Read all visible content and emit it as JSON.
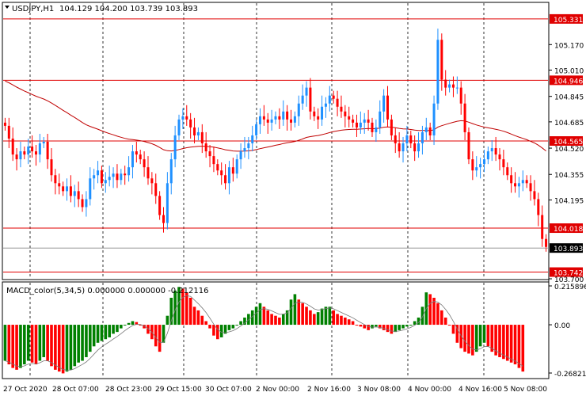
{
  "symbol_header": {
    "symbol": "USDJPY,H1",
    "ohlc": "104.129 104.200 103.739 103.893"
  },
  "macd_header": "MACD_color(5,34,5) 0.000000 0.000000 -0.212116",
  "colors": {
    "bull": "#1e90ff",
    "bear": "#ff0000",
    "ma": "#c00000",
    "hline": "#e00000",
    "macd_pos_up": "#008000",
    "macd_neg_down": "#ff0000",
    "grid": "#000000",
    "price_badge_bg": "#000000"
  },
  "price_axis": {
    "ticks": [
      "105.331",
      "105.170",
      "105.010",
      "104.946",
      "104.845",
      "104.685",
      "104.565",
      "104.520",
      "104.355",
      "104.195",
      "104.018",
      "103.893",
      "103.742",
      "103.700"
    ],
    "hline_labels": [
      "105.331",
      "104.946",
      "104.565",
      "104.018",
      "103.742"
    ],
    "current_price": "103.893"
  },
  "macd_axis": {
    "ticks": [
      "0.215896",
      "0.00",
      "-0.268211"
    ]
  },
  "time_axis": {
    "labels": [
      "27 Oct 2020",
      "28 Oct 07:00",
      "28 Oct 23:00",
      "29 Oct 15:00",
      "30 Oct 07:00",
      "2 Nov 00:00",
      "2 Nov 16:00",
      "3 Nov 08:00",
      "4 Nov 00:00",
      "4 Nov 16:00",
      "5 Nov 08:00"
    ]
  },
  "chart_data": {
    "type": "candlestick",
    "title": "USDJPY,H1",
    "y_range": [
      103.7,
      105.43
    ],
    "horizontal_levels": [
      105.331,
      104.946,
      104.565,
      104.018,
      103.742
    ],
    "current_price": 103.893,
    "closes": [
      104.66,
      104.58,
      104.48,
      104.45,
      104.5,
      104.48,
      104.53,
      104.5,
      104.48,
      104.55,
      104.56,
      104.45,
      104.35,
      104.3,
      104.28,
      104.25,
      104.28,
      104.22,
      104.25,
      104.2,
      104.15,
      104.2,
      104.33,
      104.35,
      104.38,
      104.3,
      104.32,
      104.34,
      104.36,
      104.32,
      104.36,
      104.35,
      104.4,
      104.5,
      104.48,
      104.45,
      104.4,
      104.33,
      104.3,
      104.22,
      104.1,
      104.05,
      104.3,
      104.45,
      104.6,
      104.7,
      104.72,
      104.7,
      104.65,
      104.6,
      104.62,
      104.55,
      104.5,
      104.47,
      104.42,
      104.38,
      104.35,
      104.3,
      104.4,
      104.36,
      104.45,
      104.5,
      104.52,
      104.55,
      104.6,
      104.67,
      104.72,
      104.7,
      104.68,
      104.7,
      104.72,
      104.7,
      104.75,
      104.7,
      104.68,
      104.72,
      104.8,
      104.85,
      104.9,
      104.75,
      104.72,
      104.7,
      104.78,
      104.8,
      104.85,
      104.83,
      104.78,
      104.75,
      104.72,
      104.7,
      104.68,
      104.65,
      104.68,
      104.7,
      104.68,
      104.62,
      104.65,
      104.75,
      104.85,
      104.7,
      104.6,
      104.55,
      104.5,
      104.55,
      104.6,
      104.55,
      104.5,
      104.55,
      104.62,
      104.65,
      104.6,
      104.8,
      105.2,
      104.95,
      104.9,
      104.92,
      104.9,
      104.9,
      104.8,
      104.62,
      104.45,
      104.38,
      104.4,
      104.42,
      104.45,
      104.5,
      104.52,
      104.48,
      104.45,
      104.4,
      104.35,
      104.3,
      104.28,
      104.3,
      104.32,
      104.3,
      104.25,
      104.2,
      104.1,
      103.95,
      103.9
    ],
    "macd": [
      -0.2,
      -0.22,
      -0.24,
      -0.25,
      -0.24,
      -0.22,
      -0.2,
      -0.21,
      -0.22,
      -0.2,
      -0.18,
      -0.2,
      -0.23,
      -0.25,
      -0.26,
      -0.27,
      -0.26,
      -0.25,
      -0.23,
      -0.21,
      -0.2,
      -0.18,
      -0.15,
      -0.12,
      -0.1,
      -0.09,
      -0.08,
      -0.07,
      -0.05,
      -0.04,
      -0.02,
      0.0,
      0.01,
      0.02,
      0.015,
      0.0,
      -0.02,
      -0.05,
      -0.08,
      -0.12,
      -0.15,
      -0.1,
      0.05,
      0.15,
      0.19,
      0.21,
      0.2,
      0.18,
      0.15,
      0.1,
      0.08,
      0.05,
      0.02,
      -0.02,
      -0.06,
      -0.08,
      -0.07,
      -0.05,
      -0.03,
      -0.02,
      0.0,
      0.02,
      0.04,
      0.06,
      0.08,
      0.1,
      0.12,
      0.1,
      0.08,
      0.06,
      0.05,
      0.04,
      0.06,
      0.08,
      0.14,
      0.17,
      0.14,
      0.12,
      0.1,
      0.08,
      0.06,
      0.07,
      0.09,
      0.1,
      0.1,
      0.08,
      0.06,
      0.05,
      0.04,
      0.03,
      0.02,
      0.0,
      -0.01,
      -0.02,
      -0.03,
      -0.02,
      -0.01,
      -0.02,
      -0.03,
      -0.04,
      -0.05,
      -0.04,
      -0.03,
      -0.02,
      -0.01,
      0.0,
      0.02,
      0.04,
      0.1,
      0.18,
      0.17,
      0.15,
      0.12,
      0.08,
      0.04,
      0.0,
      -0.05,
      -0.1,
      -0.13,
      -0.15,
      -0.16,
      -0.17,
      -0.15,
      -0.12,
      -0.1,
      -0.12,
      -0.15,
      -0.17,
      -0.18,
      -0.19,
      -0.2,
      -0.21,
      -0.22,
      -0.24,
      -0.26
    ]
  }
}
